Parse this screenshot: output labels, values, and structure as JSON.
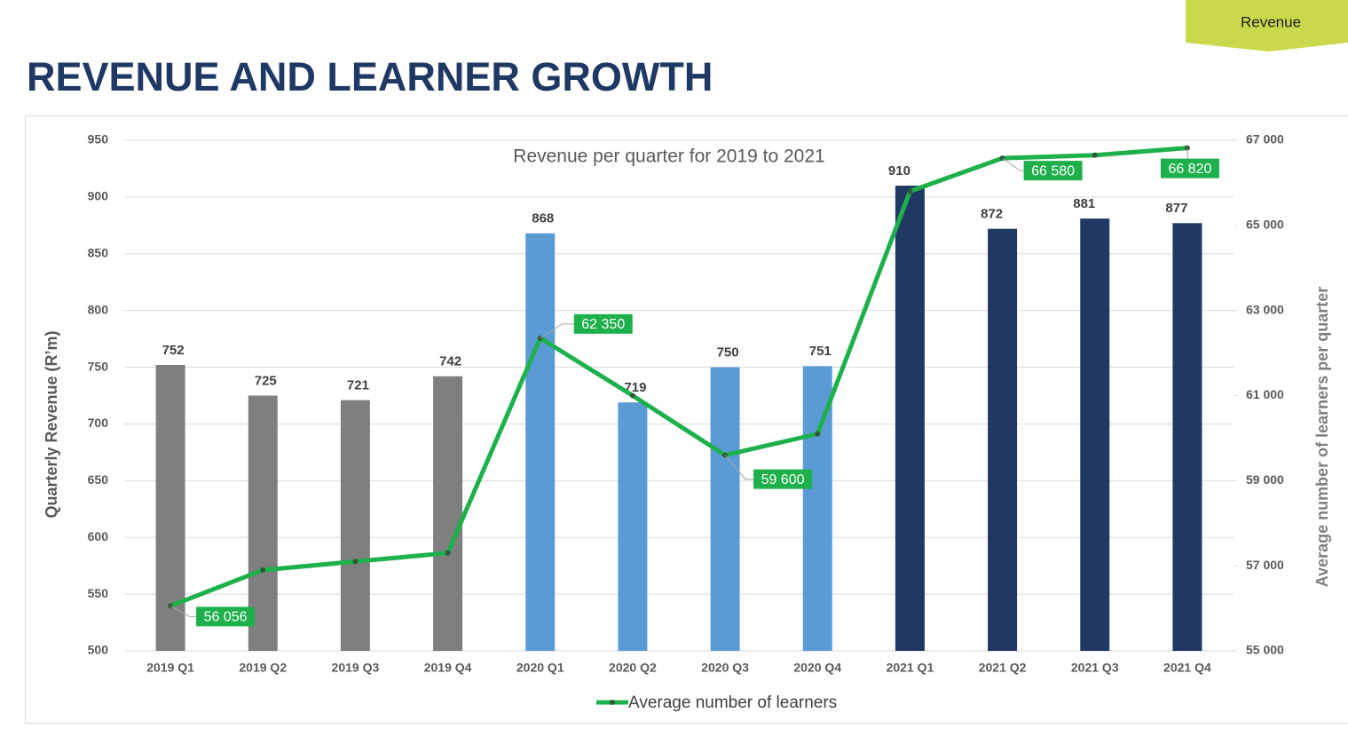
{
  "header": {
    "tab": "Revenue",
    "title": "REVENUE AND LEARNER GROWTH"
  },
  "chart_data": {
    "type": "bar",
    "title": "Revenue per quarter for 2019 to 2021",
    "ylabel": "Quarterly Revenue (R’m)",
    "y2label": "Average number of learners per quarter",
    "categories": [
      "2019 Q1",
      "2019 Q2",
      "2019 Q3",
      "2019 Q4",
      "2020 Q1",
      "2020 Q2",
      "2020 Q3",
      "2020 Q4",
      "2021 Q1",
      "2021 Q2",
      "2021 Q3",
      "2021 Q4"
    ],
    "values": [
      752,
      725,
      721,
      742,
      868,
      719,
      750,
      751,
      910,
      872,
      881,
      877
    ],
    "colors": [
      "#7f7f7f",
      "#7f7f7f",
      "#7f7f7f",
      "#7f7f7f",
      "#5b9bd5",
      "#5b9bd5",
      "#5b9bd5",
      "#5b9bd5",
      "#203864",
      "#203864",
      "#203864",
      "#203864"
    ],
    "series": [
      {
        "name": "Average number of learners",
        "color": "#1db04b",
        "type": "line",
        "axis": "y2",
        "values": [
          56056,
          56900,
          57100,
          57300,
          62350,
          61000,
          59600,
          60100,
          65800,
          66580,
          66650,
          66820
        ],
        "value_labels": [
          "56 056",
          null,
          null,
          null,
          "62 350",
          null,
          "59 600",
          null,
          null,
          "66 580",
          null,
          "66 820"
        ]
      }
    ],
    "ylim": [
      500,
      950
    ],
    "yticks": [
      500,
      550,
      600,
      650,
      700,
      750,
      800,
      850,
      900,
      950
    ],
    "y2lim": [
      55000,
      67000
    ],
    "y2ticks": [
      {
        "value": 55000,
        "label": "55 000"
      },
      {
        "value": 57000,
        "label": "57 000"
      },
      {
        "value": 59000,
        "label": "59 000"
      },
      {
        "value": 61000,
        "label": "61 000"
      },
      {
        "value": 63000,
        "label": "63 000"
      },
      {
        "value": 65000,
        "label": "65 000"
      },
      {
        "value": 67000,
        "label": "67 000"
      }
    ],
    "grid": true,
    "legend": "bottom"
  }
}
